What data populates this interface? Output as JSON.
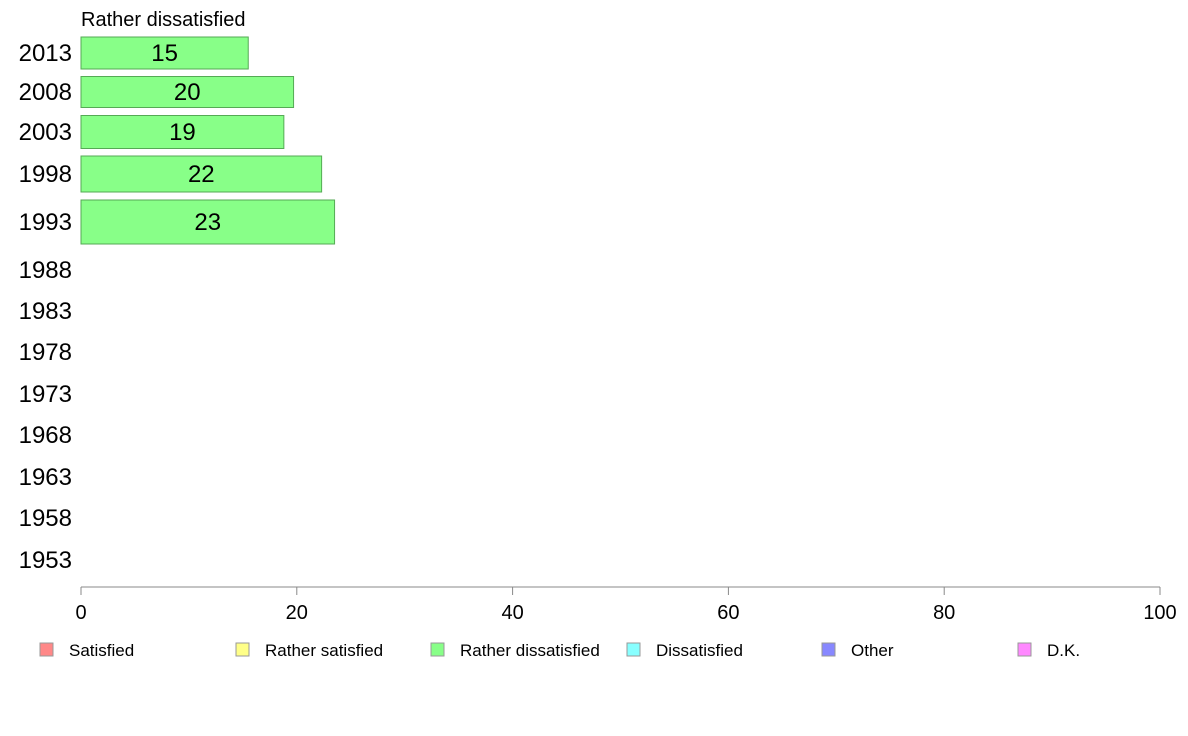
{
  "chart_data": {
    "type": "bar",
    "orientation": "horizontal",
    "title": "Rather dissatisfied",
    "categories": [
      "2013",
      "2008",
      "2003",
      "1998",
      "1993",
      "1988",
      "1983",
      "1978",
      "1973",
      "1968",
      "1963",
      "1958",
      "1953"
    ],
    "series": [
      {
        "name": "Rather dissatisfied",
        "color": "#88ff88",
        "values": [
          15.5,
          19.7,
          18.8,
          22.3,
          23.5,
          null,
          null,
          null,
          null,
          null,
          null,
          null,
          null
        ],
        "labels": [
          "15",
          "20",
          "19",
          "22",
          "23",
          "",
          "",
          "",
          "",
          "",
          "",
          "",
          ""
        ]
      }
    ],
    "xlim": [
      0,
      100
    ],
    "xticks": [
      "0",
      "20",
      "40",
      "60",
      "80",
      "100"
    ],
    "legend": {
      "placement": "bottom",
      "items": [
        {
          "label": "Satisfied",
          "color": "#ff8888"
        },
        {
          "label": "Rather satisfied",
          "color": "#ffff88"
        },
        {
          "label": "Rather dissatisfied",
          "color": "#88ff88"
        },
        {
          "label": "Dissatisfied",
          "color": "#88ffff"
        },
        {
          "label": "Other",
          "color": "#8888ff"
        },
        {
          "label": "D.K.",
          "color": "#ff88ff"
        }
      ]
    },
    "grid": false
  }
}
